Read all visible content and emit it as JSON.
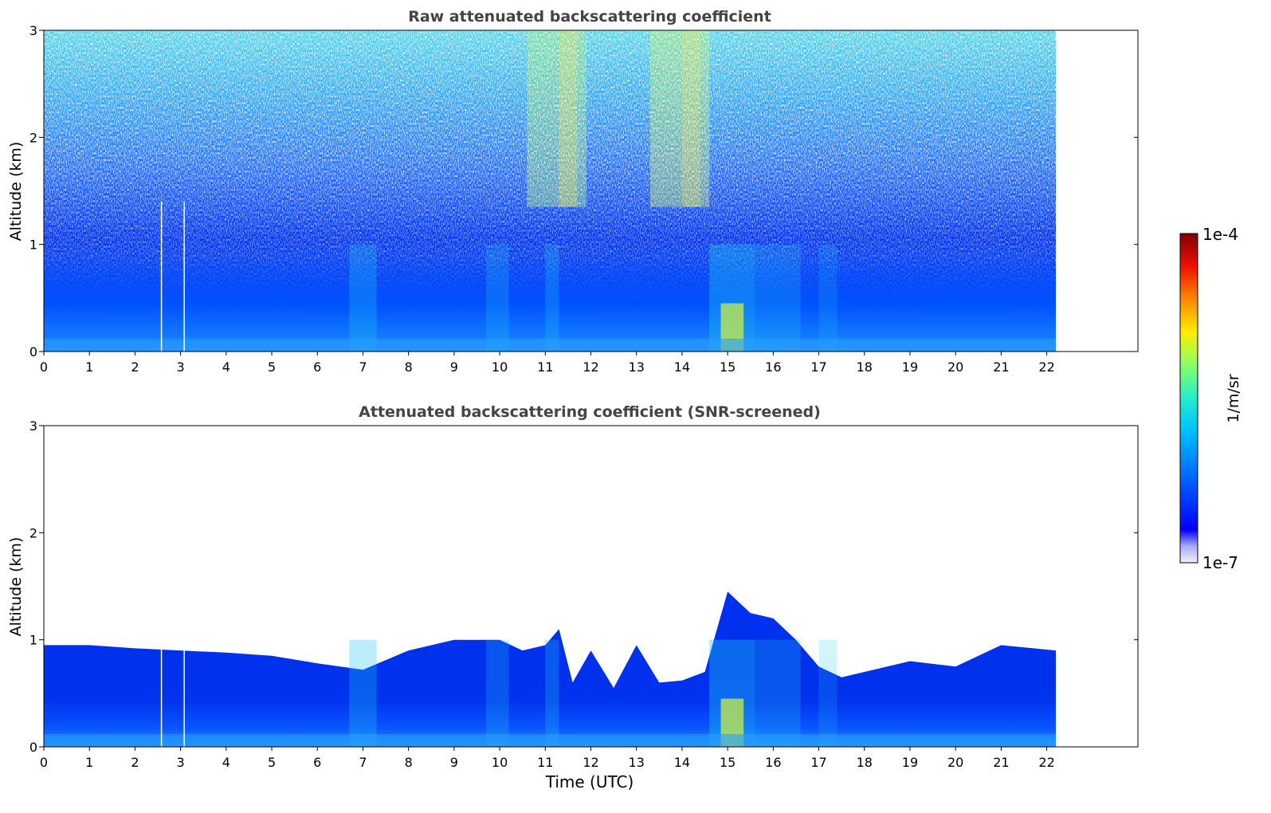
{
  "figure": {
    "ylabel": "Altitude (km)",
    "xlabel": "Time (UTC)"
  },
  "chart_data": [
    {
      "type": "heatmap",
      "title": "Raw attenuated backscattering coefficient",
      "xlabel": "",
      "ylabel": "Altitude (km)",
      "xlim": [
        0,
        24
      ],
      "ylim": [
        0,
        3
      ],
      "xticks": [
        "0",
        "1",
        "2",
        "3",
        "4",
        "5",
        "6",
        "7",
        "8",
        "9",
        "10",
        "11",
        "12",
        "13",
        "14",
        "15",
        "16",
        "17",
        "18",
        "19",
        "20",
        "21",
        "22"
      ],
      "yticks": [
        "0",
        "1",
        "2",
        "3"
      ],
      "data_time_range_utc": [
        0,
        22.2
      ],
      "data_gaps_utc": [
        2.58,
        3.08
      ],
      "grid": false
    },
    {
      "type": "heatmap",
      "title": "Attenuated backscattering coefficient (SNR-screened)",
      "xlabel": "Time (UTC)",
      "ylabel": "Altitude (km)",
      "xlim": [
        0,
        24
      ],
      "ylim": [
        0,
        3
      ],
      "xticks": [
        "0",
        "1",
        "2",
        "3",
        "4",
        "5",
        "6",
        "7",
        "8",
        "9",
        "10",
        "11",
        "12",
        "13",
        "14",
        "15",
        "16",
        "17",
        "18",
        "19",
        "20",
        "21",
        "22"
      ],
      "yticks": [
        "0",
        "1",
        "2",
        "3"
      ],
      "data_time_range_utc": [
        0,
        22.2
      ],
      "data_gaps_utc": [
        2.58,
        3.08
      ],
      "signal_top_km_profile": [
        [
          0,
          0.95
        ],
        [
          1,
          0.95
        ],
        [
          2,
          0.92
        ],
        [
          3,
          0.9
        ],
        [
          4,
          0.88
        ],
        [
          5,
          0.85
        ],
        [
          6,
          0.78
        ],
        [
          7,
          0.72
        ],
        [
          8,
          0.9
        ],
        [
          9,
          1.0
        ],
        [
          10,
          1.0
        ],
        [
          10.5,
          0.9
        ],
        [
          11,
          0.95
        ],
        [
          11.3,
          1.1
        ],
        [
          11.6,
          0.6
        ],
        [
          12,
          0.9
        ],
        [
          12.5,
          0.55
        ],
        [
          13,
          0.95
        ],
        [
          13.5,
          0.6
        ],
        [
          14,
          0.62
        ],
        [
          14.5,
          0.7
        ],
        [
          15,
          1.45
        ],
        [
          15.5,
          1.25
        ],
        [
          16,
          1.2
        ],
        [
          16.5,
          1.0
        ],
        [
          17,
          0.75
        ],
        [
          17.5,
          0.65
        ],
        [
          18,
          0.7
        ],
        [
          19,
          0.8
        ],
        [
          20,
          0.75
        ],
        [
          21,
          0.95
        ],
        [
          22.2,
          0.9
        ]
      ],
      "grid": false
    }
  ],
  "colorbar": {
    "label": "1/m/sr",
    "max_label": "1e-4",
    "min_label": "1e-7",
    "scale": "log",
    "colormap": [
      "#eeeefc",
      "#b4b4f8",
      "#0000ff",
      "#0066ff",
      "#00bfff",
      "#33ffcc",
      "#aaff44",
      "#ffee00",
      "#ff8800",
      "#ee1100",
      "#7f0000"
    ]
  }
}
